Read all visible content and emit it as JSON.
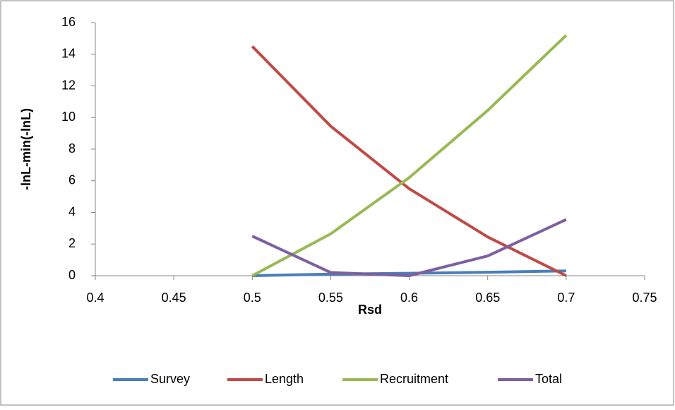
{
  "chart_data": {
    "type": "line",
    "x_label": "Rsd",
    "y_label": "-lnL-min(-lnL)",
    "x": [
      0.5,
      0.55,
      0.6,
      0.65,
      0.7
    ],
    "series": [
      {
        "name": "Survey",
        "color": "#4a7ebb",
        "values": [
          0,
          0.1,
          0.15,
          0.22,
          0.3
        ]
      },
      {
        "name": "Length",
        "color": "#be4b48",
        "values": [
          14.5,
          9.45,
          5.5,
          2.45,
          0
        ]
      },
      {
        "name": "Recruitment",
        "color": "#98b954",
        "values": [
          0,
          2.65,
          6.2,
          10.45,
          15.2
        ]
      },
      {
        "name": "Total",
        "color": "#7d60a0",
        "values": [
          2.5,
          0.2,
          0,
          1.25,
          3.55
        ]
      }
    ],
    "xlim": [
      0.4,
      0.75
    ],
    "xticks": [
      0.4,
      0.45,
      0.5,
      0.55,
      0.6,
      0.65,
      0.7,
      0.75
    ],
    "ylim": [
      0,
      16
    ],
    "yticks": [
      0,
      2,
      4,
      6,
      8,
      10,
      12,
      14,
      16
    ],
    "grid": false,
    "legend": "bottom"
  }
}
